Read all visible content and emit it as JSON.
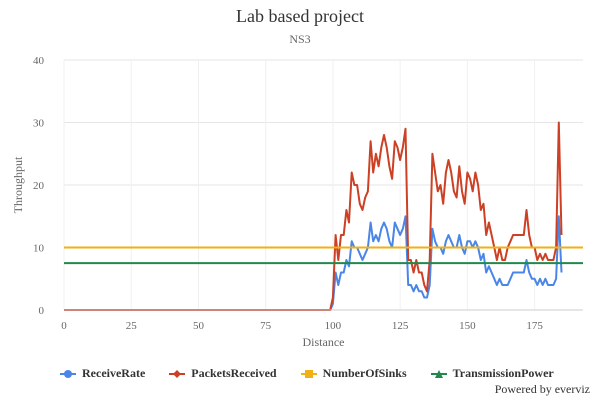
{
  "chart_data": {
    "type": "line",
    "title": "Lab based project",
    "subtitle": "NS3",
    "xlabel": "Distance",
    "ylabel": "Throughput",
    "xlim": [
      0,
      193
    ],
    "ylim": [
      0,
      40
    ],
    "xticks": [
      0,
      25,
      50,
      75,
      100,
      125,
      150,
      175
    ],
    "yticks": [
      0,
      10,
      20,
      30,
      40
    ],
    "grid": true,
    "legend_position": "bottom",
    "series": [
      {
        "name": "ReceiveRate",
        "color": "#4a86e8",
        "marker": "circle",
        "points": [
          [
            0,
            0
          ],
          [
            99,
            0
          ],
          [
            100,
            1
          ],
          [
            101,
            6
          ],
          [
            102,
            4
          ],
          [
            103,
            6
          ],
          [
            104,
            6
          ],
          [
            105,
            8
          ],
          [
            106,
            7
          ],
          [
            107,
            11
          ],
          [
            108,
            10
          ],
          [
            109,
            10
          ],
          [
            110,
            9
          ],
          [
            111,
            8
          ],
          [
            112,
            9
          ],
          [
            113,
            10
          ],
          [
            114,
            14
          ],
          [
            115,
            11
          ],
          [
            116,
            12
          ],
          [
            117,
            11
          ],
          [
            118,
            13
          ],
          [
            119,
            14
          ],
          [
            120,
            13
          ],
          [
            121,
            11
          ],
          [
            122,
            10
          ],
          [
            123,
            14
          ],
          [
            124,
            13
          ],
          [
            125,
            12
          ],
          [
            126,
            13
          ],
          [
            127,
            15
          ],
          [
            128,
            4
          ],
          [
            129,
            4
          ],
          [
            130,
            3
          ],
          [
            131,
            4
          ],
          [
            132,
            3
          ],
          [
            133,
            3
          ],
          [
            134,
            2
          ],
          [
            135,
            2
          ],
          [
            136,
            4
          ],
          [
            137,
            13
          ],
          [
            138,
            11
          ],
          [
            139,
            10
          ],
          [
            140,
            10
          ],
          [
            141,
            9
          ],
          [
            142,
            11
          ],
          [
            143,
            12
          ],
          [
            144,
            11
          ],
          [
            145,
            10
          ],
          [
            146,
            10
          ],
          [
            147,
            12
          ],
          [
            148,
            10
          ],
          [
            149,
            9
          ],
          [
            150,
            11
          ],
          [
            151,
            11
          ],
          [
            152,
            10
          ],
          [
            153,
            11
          ],
          [
            154,
            10
          ],
          [
            155,
            8
          ],
          [
            156,
            9
          ],
          [
            157,
            6
          ],
          [
            158,
            7
          ],
          [
            159,
            6
          ],
          [
            160,
            5
          ],
          [
            161,
            4
          ],
          [
            162,
            5
          ],
          [
            163,
            4
          ],
          [
            164,
            4
          ],
          [
            165,
            4
          ],
          [
            166,
            5
          ],
          [
            167,
            6
          ],
          [
            168,
            6
          ],
          [
            169,
            6
          ],
          [
            170,
            6
          ],
          [
            171,
            6
          ],
          [
            172,
            8
          ],
          [
            173,
            6
          ],
          [
            174,
            5
          ],
          [
            175,
            5
          ],
          [
            176,
            4
          ],
          [
            177,
            5
          ],
          [
            178,
            4
          ],
          [
            179,
            5
          ],
          [
            180,
            4
          ],
          [
            181,
            4
          ],
          [
            182,
            4
          ],
          [
            183,
            5
          ],
          [
            184,
            15
          ],
          [
            185,
            6
          ]
        ]
      },
      {
        "name": "PacketsReceived",
        "color": "#cc4125",
        "marker": "diamond",
        "points": [
          [
            0,
            0
          ],
          [
            99,
            0
          ],
          [
            100,
            2
          ],
          [
            101,
            12
          ],
          [
            102,
            8
          ],
          [
            103,
            12
          ],
          [
            104,
            12
          ],
          [
            105,
            16
          ],
          [
            106,
            14
          ],
          [
            107,
            22
          ],
          [
            108,
            20
          ],
          [
            109,
            20
          ],
          [
            110,
            17
          ],
          [
            111,
            16
          ],
          [
            112,
            18
          ],
          [
            113,
            19
          ],
          [
            114,
            27
          ],
          [
            115,
            22
          ],
          [
            116,
            25
          ],
          [
            117,
            23
          ],
          [
            118,
            26
          ],
          [
            119,
            28
          ],
          [
            120,
            26
          ],
          [
            121,
            23
          ],
          [
            122,
            21
          ],
          [
            123,
            27
          ],
          [
            124,
            26
          ],
          [
            125,
            24
          ],
          [
            126,
            26
          ],
          [
            127,
            29
          ],
          [
            128,
            8
          ],
          [
            129,
            8
          ],
          [
            130,
            6
          ],
          [
            131,
            8
          ],
          [
            132,
            6
          ],
          [
            133,
            6
          ],
          [
            134,
            4
          ],
          [
            135,
            3
          ],
          [
            136,
            8
          ],
          [
            137,
            25
          ],
          [
            138,
            22
          ],
          [
            139,
            19
          ],
          [
            140,
            20
          ],
          [
            141,
            17
          ],
          [
            142,
            22
          ],
          [
            143,
            24
          ],
          [
            144,
            22
          ],
          [
            145,
            19
          ],
          [
            146,
            18
          ],
          [
            147,
            23
          ],
          [
            148,
            19
          ],
          [
            149,
            17
          ],
          [
            150,
            22
          ],
          [
            151,
            21
          ],
          [
            152,
            19
          ],
          [
            153,
            22
          ],
          [
            154,
            20
          ],
          [
            155,
            16
          ],
          [
            156,
            17
          ],
          [
            157,
            12
          ],
          [
            158,
            14
          ],
          [
            159,
            12
          ],
          [
            160,
            10
          ],
          [
            161,
            8
          ],
          [
            162,
            10
          ],
          [
            163,
            8
          ],
          [
            164,
            8
          ],
          [
            165,
            10
          ],
          [
            166,
            11
          ],
          [
            167,
            12
          ],
          [
            168,
            12
          ],
          [
            169,
            12
          ],
          [
            170,
            12
          ],
          [
            171,
            12
          ],
          [
            172,
            16
          ],
          [
            173,
            12
          ],
          [
            174,
            10
          ],
          [
            175,
            10
          ],
          [
            176,
            8
          ],
          [
            177,
            9
          ],
          [
            178,
            8
          ],
          [
            179,
            9
          ],
          [
            180,
            8
          ],
          [
            181,
            8
          ],
          [
            182,
            8
          ],
          [
            183,
            10
          ],
          [
            184,
            30
          ],
          [
            185,
            12
          ]
        ]
      },
      {
        "name": "NumberOfSinks",
        "color": "#f1b112",
        "marker": "square",
        "points": [
          [
            0,
            10
          ],
          [
            193,
            10
          ]
        ]
      },
      {
        "name": "TransmissionPower",
        "color": "#1f8a4c",
        "marker": "triangle",
        "points": [
          [
            0,
            7.5
          ],
          [
            193,
            7.5
          ]
        ]
      }
    ]
  },
  "credits": "Powered by everviz"
}
